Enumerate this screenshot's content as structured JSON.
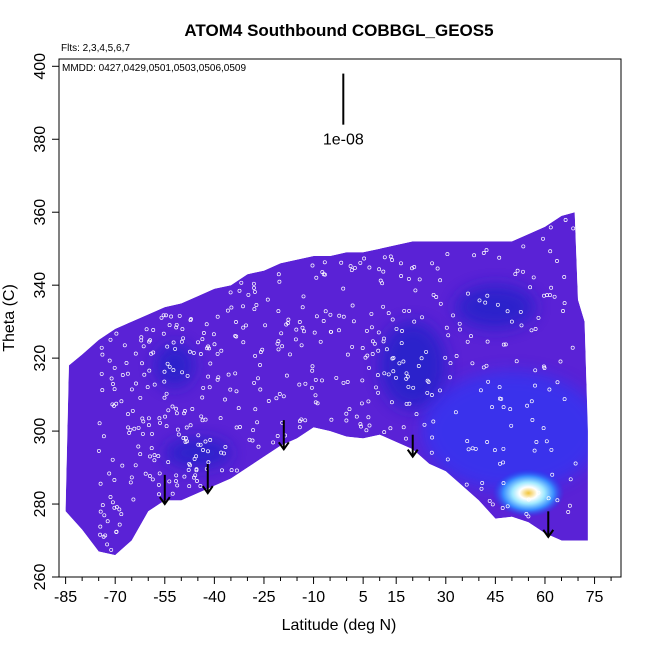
{
  "chart_data": {
    "type": "heatmap",
    "title": "ATOM4 Southbound COBBGL_GEOS5",
    "subtitle": "Flts: 2,3,4,5,6,7",
    "annotation": "MMDD: 0427,0429,0501,0503,0506,0509",
    "xlabel": "Latitude (deg N)",
    "ylabel": "Theta (C)",
    "xlim": [
      -87,
      83
    ],
    "ylim": [
      260,
      402
    ],
    "x_ticks": [
      -85,
      -70,
      -55,
      -40,
      -25,
      -10,
      5,
      15,
      30,
      45,
      60,
      75
    ],
    "x_ticks_minor": [
      -80,
      -75,
      -65,
      -60,
      -50,
      -45,
      -35,
      -30,
      -20,
      -15,
      -5,
      0,
      10,
      20,
      25,
      35,
      40,
      50,
      55,
      65,
      70,
      80
    ],
    "y_ticks": [
      260,
      280,
      300,
      320,
      340,
      360,
      380,
      400
    ],
    "scale_label": "1e-08",
    "scale_bar": {
      "x": -1,
      "y_from": 384,
      "y_to": 398
    },
    "bottom_boundary": [
      [
        -85,
        278
      ],
      [
        -80,
        273
      ],
      [
        -75,
        267
      ],
      [
        -70,
        266
      ],
      [
        -65,
        270
      ],
      [
        -60,
        278
      ],
      [
        -55,
        281
      ],
      [
        -50,
        281
      ],
      [
        -45,
        283
      ],
      [
        -40,
        285
      ],
      [
        -35,
        287
      ],
      [
        -30,
        290
      ],
      [
        -25,
        293
      ],
      [
        -20,
        296
      ],
      [
        -15,
        298
      ],
      [
        -10,
        301
      ],
      [
        -5,
        300
      ],
      [
        0,
        298.5
      ],
      [
        5,
        298
      ],
      [
        10,
        299
      ],
      [
        15,
        297
      ],
      [
        20,
        295
      ],
      [
        25,
        291
      ],
      [
        30,
        289
      ],
      [
        35,
        285
      ],
      [
        40,
        281
      ],
      [
        45,
        276
      ],
      [
        50,
        276.5
      ],
      [
        55,
        275
      ],
      [
        60,
        272
      ],
      [
        65,
        270
      ],
      [
        70,
        270
      ],
      [
        73,
        270
      ],
      [
        73,
        290
      ]
    ],
    "top_boundary": [
      [
        -85,
        279
      ],
      [
        -84,
        318
      ],
      [
        -80,
        321
      ],
      [
        -75,
        325
      ],
      [
        -70,
        328
      ],
      [
        -65,
        330
      ],
      [
        -60,
        332
      ],
      [
        -55,
        334
      ],
      [
        -50,
        335
      ],
      [
        -45,
        337
      ],
      [
        -40,
        339
      ],
      [
        -35,
        340
      ],
      [
        -30,
        343
      ],
      [
        -25,
        344
      ],
      [
        -20,
        346
      ],
      [
        -15,
        347
      ],
      [
        -10,
        348
      ],
      [
        -5,
        348
      ],
      [
        0,
        349
      ],
      [
        5,
        349
      ],
      [
        10,
        350
      ],
      [
        15,
        351
      ],
      [
        20,
        352
      ],
      [
        30,
        352
      ],
      [
        40,
        352
      ],
      [
        50,
        352
      ],
      [
        55,
        354
      ],
      [
        60,
        356
      ],
      [
        65,
        359
      ],
      [
        69,
        360
      ],
      [
        70,
        336
      ],
      [
        72,
        330
      ],
      [
        73,
        300
      ],
      [
        73,
        290
      ]
    ],
    "hotspot": {
      "x": 55,
      "y": 283
    },
    "dark_regions": [
      {
        "x": -52,
        "y": 318,
        "rx": 6,
        "ry": 6
      },
      {
        "x": -45,
        "y": 294,
        "rx": 10,
        "ry": 4
      },
      {
        "x": 20,
        "y": 318,
        "rx": 10,
        "ry": 12
      },
      {
        "x": 45,
        "y": 334,
        "rx": 12,
        "ry": 6
      }
    ],
    "arrows": [
      {
        "x": -55,
        "y_from": 288,
        "y_to": 280
      },
      {
        "x": -42,
        "y_from": 291,
        "y_to": 283
      },
      {
        "x": -19,
        "y_from": 303,
        "y_to": 295
      },
      {
        "x": 20,
        "y_from": 299,
        "y_to": 293
      },
      {
        "x": 61,
        "y_from": 278,
        "y_to": 271
      }
    ],
    "colors": {
      "base": "#5a22d6",
      "dark": "#1a20c8",
      "bright": "#2040ff",
      "hot": "#f0d040",
      "points": "#ffffff",
      "arrow": "#000000"
    },
    "grid": false,
    "legend": "none"
  }
}
